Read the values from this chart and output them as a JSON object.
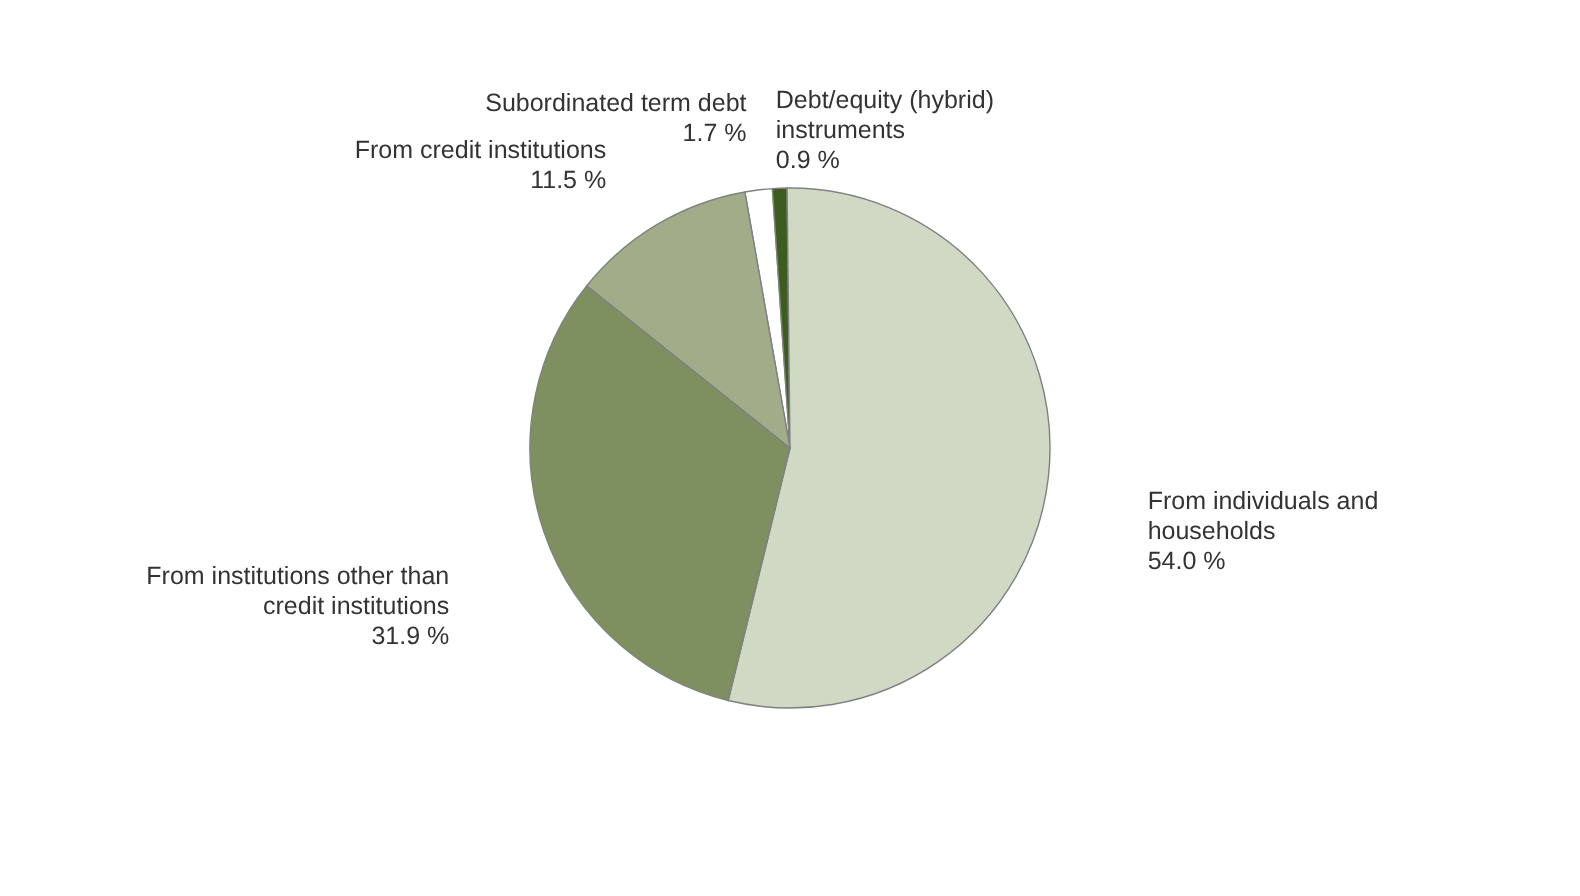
{
  "chart_data": {
    "type": "pie",
    "categories": [
      "Subordinated term debt",
      "Debt/equity (hybrid) instruments",
      "From individuals and households",
      "From institutions other than credit institutions",
      "From credit institutions"
    ],
    "values": [
      1.7,
      0.9,
      54.0,
      31.9,
      11.5
    ],
    "value_labels": [
      "1.7 %",
      "0.9 %",
      "54.0 %",
      "31.9 %",
      "11.5 %"
    ],
    "colors": [
      "#ffffff",
      "#3d5c1f",
      "#d0d9c4",
      "#7e8f60",
      "#a0ad88"
    ]
  }
}
